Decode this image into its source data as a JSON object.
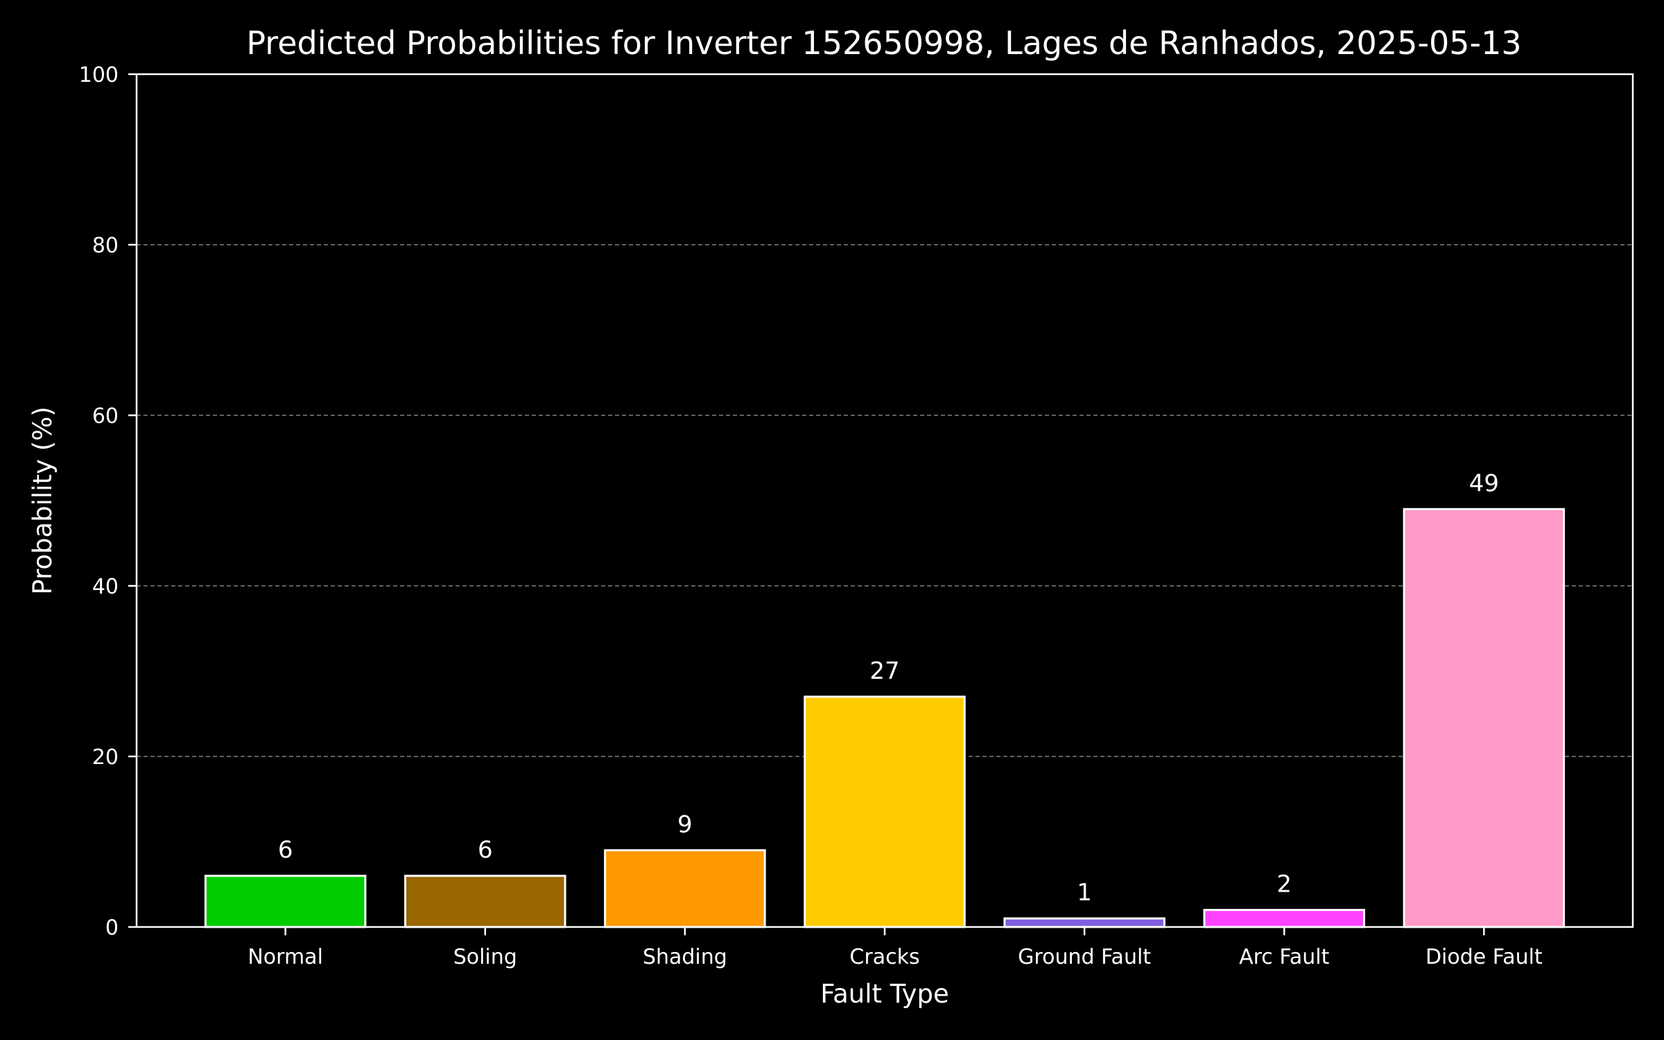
{
  "chart_data": {
    "type": "bar",
    "title": "Predicted Probabilities for Inverter 152650998, Lages de Ranhados, 2025-05-13",
    "xlabel": "Fault Type",
    "ylabel": "Probability (%)",
    "categories": [
      "Normal",
      "Soling",
      "Shading",
      "Cracks",
      "Ground Fault",
      "Arc Fault",
      "Diode Fault"
    ],
    "values": [
      6,
      6,
      9,
      27,
      1,
      2,
      49
    ],
    "data_labels": [
      "6",
      "6",
      "9",
      "27",
      "1",
      "2",
      "49"
    ],
    "colors": [
      "#00cc00",
      "#996600",
      "#ff9900",
      "#ffcc00",
      "#7f5fe0",
      "#ff44ff",
      "#ff99c8"
    ],
    "ylim": [
      0,
      100
    ],
    "yticks": [
      0,
      20,
      40,
      60,
      80,
      100
    ],
    "ytick_labels": [
      "0",
      "20",
      "40",
      "60",
      "80",
      "100"
    ],
    "grid": "y-dashed",
    "background": "#000000",
    "foreground": "#ffffff",
    "grid_color": "#808080"
  }
}
